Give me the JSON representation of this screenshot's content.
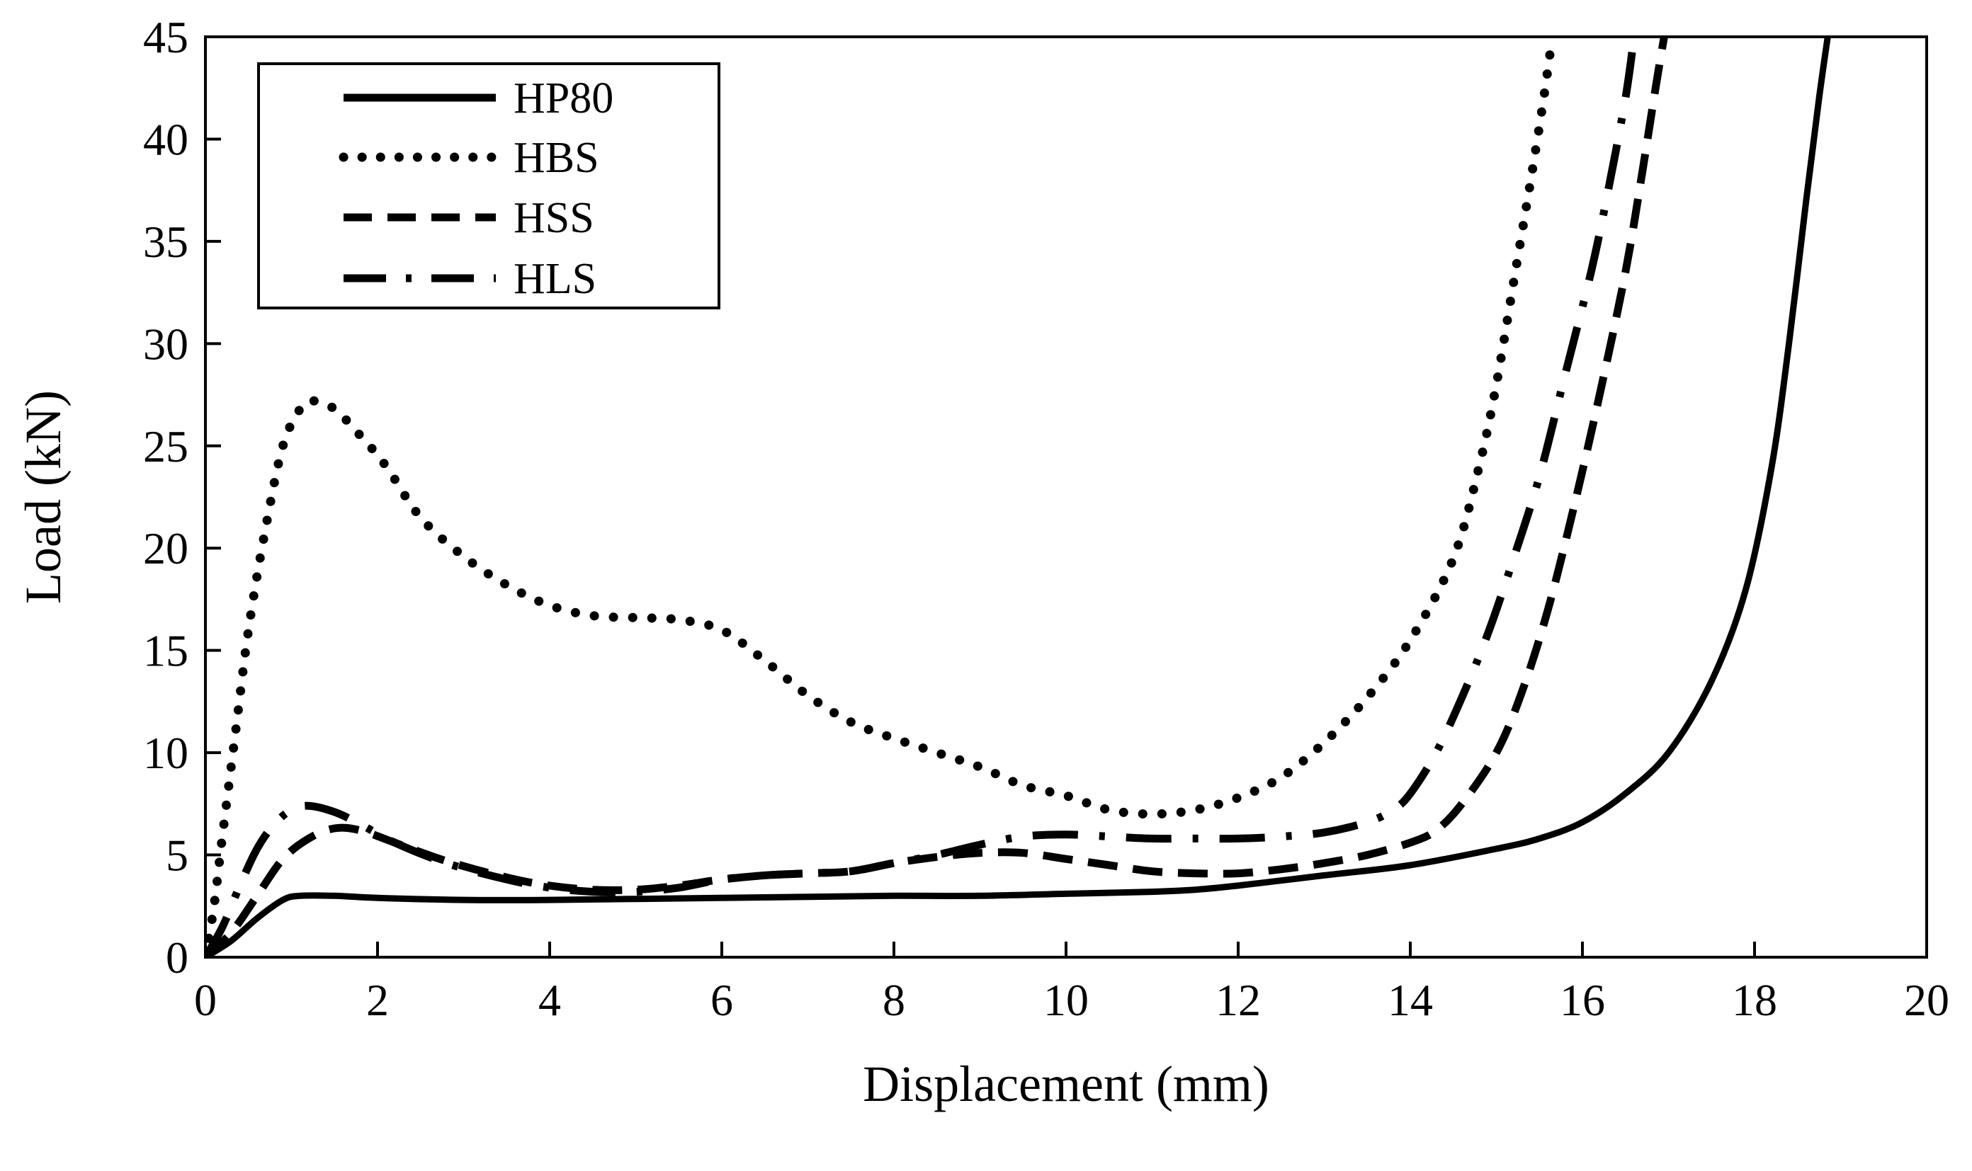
{
  "chart_data": {
    "type": "line",
    "title": "",
    "xlabel": "Displacement (mm)",
    "ylabel": "Load (kN)",
    "xlim": [
      0,
      20
    ],
    "ylim": [
      0,
      45
    ],
    "xticks": [
      0,
      2,
      4,
      6,
      8,
      10,
      12,
      14,
      16,
      18,
      20
    ],
    "yticks": [
      0,
      5,
      10,
      15,
      20,
      25,
      30,
      35,
      40,
      45
    ],
    "grid": false,
    "legend_position": "top-left",
    "series": [
      {
        "name": "HP80",
        "style": "solid",
        "points": [
          [
            0,
            0
          ],
          [
            0.3,
            0.8
          ],
          [
            0.6,
            1.9
          ],
          [
            0.9,
            2.8
          ],
          [
            1.1,
            3.0
          ],
          [
            1.5,
            3.0
          ],
          [
            2,
            2.9
          ],
          [
            3,
            2.8
          ],
          [
            4,
            2.8
          ],
          [
            5,
            2.85
          ],
          [
            6,
            2.9
          ],
          [
            7,
            2.95
          ],
          [
            8,
            3.0
          ],
          [
            9,
            3.0
          ],
          [
            10,
            3.1
          ],
          [
            11,
            3.2
          ],
          [
            11.5,
            3.3
          ],
          [
            12,
            3.5
          ],
          [
            13,
            4.0
          ],
          [
            14,
            4.5
          ],
          [
            15,
            5.3
          ],
          [
            15.5,
            5.8
          ],
          [
            16,
            6.6
          ],
          [
            16.5,
            8.0
          ],
          [
            17,
            10.0
          ],
          [
            17.5,
            13.5
          ],
          [
            17.9,
            18.0
          ],
          [
            18.2,
            24.0
          ],
          [
            18.4,
            30.0
          ],
          [
            18.6,
            37.0
          ],
          [
            18.75,
            42.0
          ],
          [
            18.85,
            45.0
          ]
        ]
      },
      {
        "name": "HBS",
        "style": "dotted",
        "points": [
          [
            0,
            0
          ],
          [
            0.1,
            2.5
          ],
          [
            0.2,
            6.0
          ],
          [
            0.35,
            11.0
          ],
          [
            0.5,
            16.0
          ],
          [
            0.7,
            21.0
          ],
          [
            0.9,
            25.0
          ],
          [
            1.1,
            26.8
          ],
          [
            1.25,
            27.2
          ],
          [
            1.5,
            26.8
          ],
          [
            1.8,
            25.5
          ],
          [
            2.1,
            24.0
          ],
          [
            2.5,
            21.5
          ],
          [
            3,
            19.6
          ],
          [
            3.5,
            18.2
          ],
          [
            4,
            17.2
          ],
          [
            4.5,
            16.7
          ],
          [
            5,
            16.6
          ],
          [
            5.5,
            16.5
          ],
          [
            6,
            16.0
          ],
          [
            6.5,
            14.5
          ],
          [
            7,
            12.8
          ],
          [
            7.5,
            11.5
          ],
          [
            8,
            10.7
          ],
          [
            8.5,
            10.0
          ],
          [
            9,
            9.3
          ],
          [
            9.5,
            8.4
          ],
          [
            10,
            7.9
          ],
          [
            10.5,
            7.2
          ],
          [
            11,
            7.0
          ],
          [
            11.5,
            7.2
          ],
          [
            12,
            7.8
          ],
          [
            12.5,
            8.8
          ],
          [
            13,
            10.5
          ],
          [
            13.5,
            12.7
          ],
          [
            14,
            15.5
          ],
          [
            14.5,
            19.5
          ],
          [
            14.8,
            24.0
          ],
          [
            15,
            28.0
          ],
          [
            15.2,
            33.0
          ],
          [
            15.4,
            38.0
          ],
          [
            15.55,
            42.0
          ],
          [
            15.65,
            45.0
          ]
        ]
      },
      {
        "name": "HSS",
        "style": "dashed",
        "points": [
          [
            0,
            0
          ],
          [
            0.3,
            1.2
          ],
          [
            0.6,
            3.0
          ],
          [
            0.9,
            4.8
          ],
          [
            1.2,
            5.8
          ],
          [
            1.5,
            6.3
          ],
          [
            1.8,
            6.2
          ],
          [
            2.2,
            5.6
          ],
          [
            2.8,
            4.7
          ],
          [
            3.5,
            3.9
          ],
          [
            4,
            3.5
          ],
          [
            4.5,
            3.3
          ],
          [
            5,
            3.3
          ],
          [
            5.5,
            3.5
          ],
          [
            6,
            3.8
          ],
          [
            6.5,
            4.0
          ],
          [
            7,
            4.1
          ],
          [
            7.5,
            4.2
          ],
          [
            8,
            4.6
          ],
          [
            8.5,
            4.9
          ],
          [
            9,
            5.1
          ],
          [
            9.5,
            5.1
          ],
          [
            10,
            4.8
          ],
          [
            10.5,
            4.5
          ],
          [
            11,
            4.2
          ],
          [
            11.5,
            4.1
          ],
          [
            12,
            4.1
          ],
          [
            12.5,
            4.3
          ],
          [
            13,
            4.6
          ],
          [
            13.5,
            5.0
          ],
          [
            14,
            5.6
          ],
          [
            14.3,
            6.2
          ],
          [
            14.6,
            7.5
          ],
          [
            15,
            10.0
          ],
          [
            15.3,
            13.0
          ],
          [
            15.6,
            17.0
          ],
          [
            15.9,
            22.0
          ],
          [
            16.2,
            27.5
          ],
          [
            16.5,
            33.5
          ],
          [
            16.7,
            38.5
          ],
          [
            16.85,
            42.5
          ],
          [
            16.95,
            45.0
          ]
        ]
      },
      {
        "name": "HLS",
        "style": "dash-dot",
        "points": [
          [
            0,
            0
          ],
          [
            0.2,
            1.5
          ],
          [
            0.4,
            3.5
          ],
          [
            0.6,
            5.3
          ],
          [
            0.8,
            6.5
          ],
          [
            1.0,
            7.2
          ],
          [
            1.2,
            7.4
          ],
          [
            1.5,
            7.1
          ],
          [
            1.8,
            6.5
          ],
          [
            2.2,
            5.6
          ],
          [
            2.8,
            4.6
          ],
          [
            3.5,
            3.8
          ],
          [
            4,
            3.4
          ],
          [
            4.5,
            3.2
          ],
          [
            5,
            3.2
          ],
          [
            5.5,
            3.4
          ],
          [
            6,
            3.8
          ],
          [
            6.5,
            4.0
          ],
          [
            7,
            4.1
          ],
          [
            7.5,
            4.2
          ],
          [
            8,
            4.6
          ],
          [
            8.5,
            5.0
          ],
          [
            9,
            5.5
          ],
          [
            9.5,
            5.9
          ],
          [
            10,
            6.0
          ],
          [
            10.5,
            5.9
          ],
          [
            11,
            5.8
          ],
          [
            11.5,
            5.8
          ],
          [
            12,
            5.8
          ],
          [
            12.5,
            5.9
          ],
          [
            13,
            6.1
          ],
          [
            13.5,
            6.6
          ],
          [
            13.8,
            7.2
          ],
          [
            14,
            8.0
          ],
          [
            14.3,
            10.0
          ],
          [
            14.6,
            12.7
          ],
          [
            14.9,
            15.8
          ],
          [
            15.2,
            19.5
          ],
          [
            15.5,
            23.5
          ],
          [
            15.8,
            28.5
          ],
          [
            16.1,
            33.5
          ],
          [
            16.3,
            37.5
          ],
          [
            16.5,
            42.0
          ],
          [
            16.6,
            45.0
          ]
        ]
      }
    ]
  }
}
